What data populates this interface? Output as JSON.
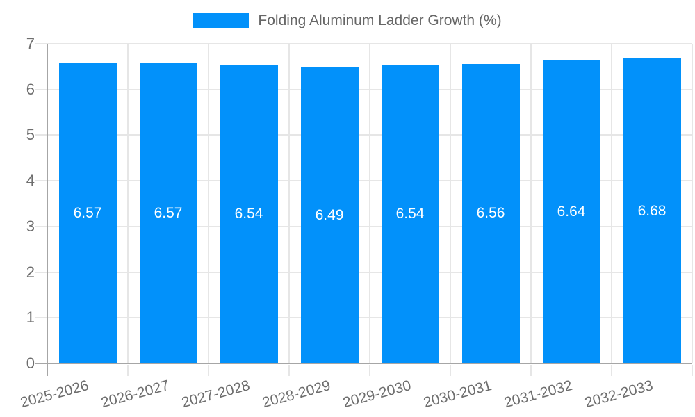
{
  "legend": {
    "label": "Folding Aluminum Ladder Growth (%)"
  },
  "chart_data": {
    "type": "bar",
    "title": "Folding Aluminum Ladder Growth (%)",
    "categories": [
      "2025-2026",
      "2026-2027",
      "2027-2028",
      "2028-2029",
      "2029-2030",
      "2030-2031",
      "2031-2032",
      "2032-2033"
    ],
    "values": [
      6.57,
      6.57,
      6.54,
      6.49,
      6.54,
      6.56,
      6.64,
      6.68
    ],
    "value_labels": [
      "6.57",
      "6.57",
      "6.54",
      "6.49",
      "6.54",
      "6.56",
      "6.64",
      "6.68"
    ],
    "xlabel": "",
    "ylabel": "",
    "ylim": [
      0,
      7
    ],
    "yticks": [
      0,
      1,
      2,
      3,
      4,
      5,
      6,
      7
    ],
    "grid": true,
    "legend_position": "top",
    "colors": {
      "bar": "#0291fa",
      "gridline": "#e6e6e6",
      "axis": "#a6a6a6",
      "tick_text": "#6e6e6e",
      "legend_text": "#666666",
      "bar_label_text": "#ffffff"
    }
  }
}
